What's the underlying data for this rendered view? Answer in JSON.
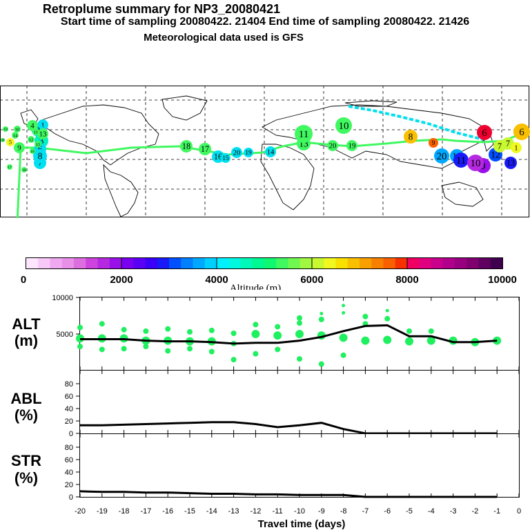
{
  "header": {
    "title": "Retroplume summary for NP3_20080421",
    "sampling": "Start time of sampling 20080422. 21404     End time of sampling 20080422. 21426",
    "meteo": "Meteorological data used is GFS"
  },
  "colorbar": {
    "label": "Altitude (m)",
    "ticks": [
      "0",
      "2000",
      "4000",
      "6000",
      "8000",
      "10000"
    ],
    "colors": [
      "#ffe6ff",
      "#f8c8f8",
      "#f0a8f0",
      "#e890e8",
      "#dd6ee0",
      "#cc44dd",
      "#b52ae0",
      "#9a10e8",
      "#7a00f0",
      "#5a00f5",
      "#3a00f8",
      "#1a1af8",
      "#0050ff",
      "#0080ff",
      "#00a8ff",
      "#00d0ff",
      "#00f0ff",
      "#00f8e0",
      "#00f8b8",
      "#00f890",
      "#10f870",
      "#40f860",
      "#70f850",
      "#a0f840",
      "#c8f830",
      "#f0f820",
      "#f8e000",
      "#f8c000",
      "#f8a000",
      "#f88000",
      "#f86000",
      "#f83000",
      "#f00060",
      "#e00080",
      "#c8008c",
      "#b0008c",
      "#980080",
      "#800070",
      "#600060",
      "#400050"
    ]
  },
  "map": {
    "markers": [
      {
        "label": "1",
        "color": "#00e0f0"
      },
      {
        "label": "2",
        "color": "#00e0f0"
      },
      {
        "label": "3",
        "color": "#00f0c0"
      },
      {
        "label": "4",
        "color": "#40f860"
      },
      {
        "label": "5",
        "color": "#f0f820"
      },
      {
        "label": "6",
        "color": "#00e0f0"
      },
      {
        "label": "7",
        "color": "#00e0f0"
      },
      {
        "label": "8",
        "color": "#00e0f0"
      },
      {
        "label": "9",
        "color": "#40f860"
      },
      {
        "label": "10",
        "color": "#40f860"
      },
      {
        "label": "11",
        "color": "#40f860"
      },
      {
        "label": "12",
        "color": "#40f860"
      },
      {
        "label": "13",
        "color": "#40f860"
      },
      {
        "label": "14",
        "color": "#40f860"
      },
      {
        "label": "15",
        "color": "#40f860"
      },
      {
        "label": "16",
        "color": "#40f860"
      },
      {
        "label": "17",
        "color": "#40f860"
      },
      {
        "label": "18",
        "color": "#40f860"
      },
      {
        "label": "19",
        "color": "#40f860"
      },
      {
        "label": "20",
        "color": "#40f860"
      },
      {
        "label": "17",
        "color": "#40f860"
      },
      {
        "label": "18",
        "color": "#40f860"
      },
      {
        "label": "16",
        "color": "#00e0f0"
      },
      {
        "label": "15",
        "color": "#00e0f0"
      },
      {
        "label": "20",
        "color": "#00e0f0"
      },
      {
        "label": "19",
        "color": "#00e0f0"
      },
      {
        "label": "14",
        "color": "#00e0f0"
      },
      {
        "label": "13",
        "color": "#40f860"
      },
      {
        "label": "10",
        "color": "#40f860"
      },
      {
        "label": "11",
        "color": "#40f860"
      },
      {
        "label": "20",
        "color": "#40f860"
      },
      {
        "label": "19",
        "color": "#40f860"
      },
      {
        "label": "8",
        "color": "#f8c000"
      },
      {
        "label": "9",
        "color": "#f86000"
      },
      {
        "label": "6",
        "color": "#f00030"
      },
      {
        "label": "20",
        "color": "#00a8ff"
      },
      {
        "label": "18",
        "color": "#00a8ff"
      },
      {
        "label": "11",
        "color": "#1a1af8"
      },
      {
        "label": "9",
        "color": "#9a10e8"
      },
      {
        "label": "10",
        "color": "#b52ae0"
      },
      {
        "label": "12",
        "color": "#0050ff"
      },
      {
        "label": "13",
        "color": "#1a1af8"
      },
      {
        "label": "7",
        "color": "#c8f830"
      },
      {
        "label": "6",
        "color": "#f8c000"
      },
      {
        "label": "1",
        "color": "#f0f820"
      },
      {
        "label": "7",
        "color": "#c8f830"
      }
    ]
  },
  "plots": {
    "alt": {
      "title_top": "ALT",
      "title_bottom": "(m)",
      "yticks": [
        "10000",
        "5000"
      ]
    },
    "abl": {
      "title_top": "ABL",
      "title_bottom": "(%)",
      "yticks": [
        "80",
        "60",
        "40",
        "20",
        "0"
      ]
    },
    "str": {
      "title_top": "STR",
      "title_bottom": "(%)",
      "yticks": [
        "80",
        "60",
        "40",
        "20",
        "0"
      ]
    },
    "xlabel": "Travel time (days)",
    "xticks": [
      "-20",
      "-19",
      "-18",
      "-17",
      "-16",
      "-15",
      "-14",
      "-13",
      "-12",
      "-11",
      "-10",
      "-9",
      "-8",
      "-7",
      "-6",
      "-5",
      "-4",
      "-3",
      "-2",
      "-1",
      "0"
    ]
  },
  "chart_data": {
    "type": "line",
    "x": [
      -20,
      -19,
      -18,
      -17,
      -16,
      -15,
      -14,
      -13,
      -12,
      -11,
      -10,
      -9,
      -8,
      -7,
      -6,
      -5,
      -4,
      -3,
      -2,
      -1
    ],
    "series": [
      {
        "name": "ALT mean (m)",
        "values": [
          4200,
          4200,
          4200,
          4000,
          3900,
          3900,
          3800,
          3600,
          3700,
          3700,
          4000,
          4500,
          5300,
          6000,
          6100,
          4600,
          4600,
          3800,
          3800,
          4000
        ]
      },
      {
        "name": "ABL (%)",
        "values": [
          13,
          13,
          14,
          15,
          16,
          17,
          18,
          18,
          15,
          10,
          13,
          17,
          7,
          0,
          0,
          0,
          0,
          0,
          0,
          0
        ]
      },
      {
        "name": "STR (%)",
        "values": [
          9,
          8,
          8,
          7,
          7,
          6,
          5,
          5,
          4,
          4,
          3,
          3,
          3,
          0,
          0,
          0,
          0,
          0,
          0,
          0
        ]
      }
    ],
    "alt_points": [
      {
        "x": -20,
        "y": 5800
      },
      {
        "x": -20,
        "y": 4300
      },
      {
        "x": -20,
        "y": 3200
      },
      {
        "x": -19,
        "y": 6300
      },
      {
        "x": -19,
        "y": 4300
      },
      {
        "x": -19,
        "y": 2800
      },
      {
        "x": -18,
        "y": 5500
      },
      {
        "x": -18,
        "y": 4300
      },
      {
        "x": -18,
        "y": 2900
      },
      {
        "x": -17,
        "y": 5300
      },
      {
        "x": -17,
        "y": 4000
      },
      {
        "x": -17,
        "y": 3200
      },
      {
        "x": -16,
        "y": 5600
      },
      {
        "x": -16,
        "y": 4000
      },
      {
        "x": -16,
        "y": 2600
      },
      {
        "x": -15,
        "y": 5200
      },
      {
        "x": -15,
        "y": 3900
      },
      {
        "x": -15,
        "y": 2900
      },
      {
        "x": -14,
        "y": 5400
      },
      {
        "x": -14,
        "y": 3900
      },
      {
        "x": -14,
        "y": 2500
      },
      {
        "x": -13,
        "y": 5000
      },
      {
        "x": -13,
        "y": 3600
      },
      {
        "x": -13,
        "y": 1400
      },
      {
        "x": -12,
        "y": 6200
      },
      {
        "x": -12,
        "y": 4900
      },
      {
        "x": -12,
        "y": 2200
      },
      {
        "x": -11,
        "y": 5900
      },
      {
        "x": -11,
        "y": 4700
      },
      {
        "x": -11,
        "y": 2800
      },
      {
        "x": -10,
        "y": 7100
      },
      {
        "x": -10,
        "y": 6400
      },
      {
        "x": -10,
        "y": 4900
      },
      {
        "x": -10,
        "y": 1500
      },
      {
        "x": -9,
        "y": 7700
      },
      {
        "x": -9,
        "y": 6900
      },
      {
        "x": -9,
        "y": 4700
      },
      {
        "x": -9,
        "y": 800
      },
      {
        "x": -8,
        "y": 8800
      },
      {
        "x": -8,
        "y": 7800
      },
      {
        "x": -8,
        "y": 4400
      },
      {
        "x": -8,
        "y": 2000
      },
      {
        "x": -7,
        "y": 7300
      },
      {
        "x": -7,
        "y": 6300
      },
      {
        "x": -7,
        "y": 4000
      },
      {
        "x": -6,
        "y": 8100
      },
      {
        "x": -6,
        "y": 7000
      },
      {
        "x": -6,
        "y": 4100
      },
      {
        "x": -5,
        "y": 5300
      },
      {
        "x": -5,
        "y": 3900
      },
      {
        "x": -4,
        "y": 5300
      },
      {
        "x": -4,
        "y": 4000
      },
      {
        "x": -3,
        "y": 4000
      },
      {
        "x": -2,
        "y": 3800
      },
      {
        "x": -1,
        "y": 4000
      }
    ],
    "xlabel": "Travel time (days)",
    "ylabel": "Altitude (m)",
    "xlim": [
      -20,
      0
    ],
    "ylim": [
      0,
      10000
    ]
  }
}
